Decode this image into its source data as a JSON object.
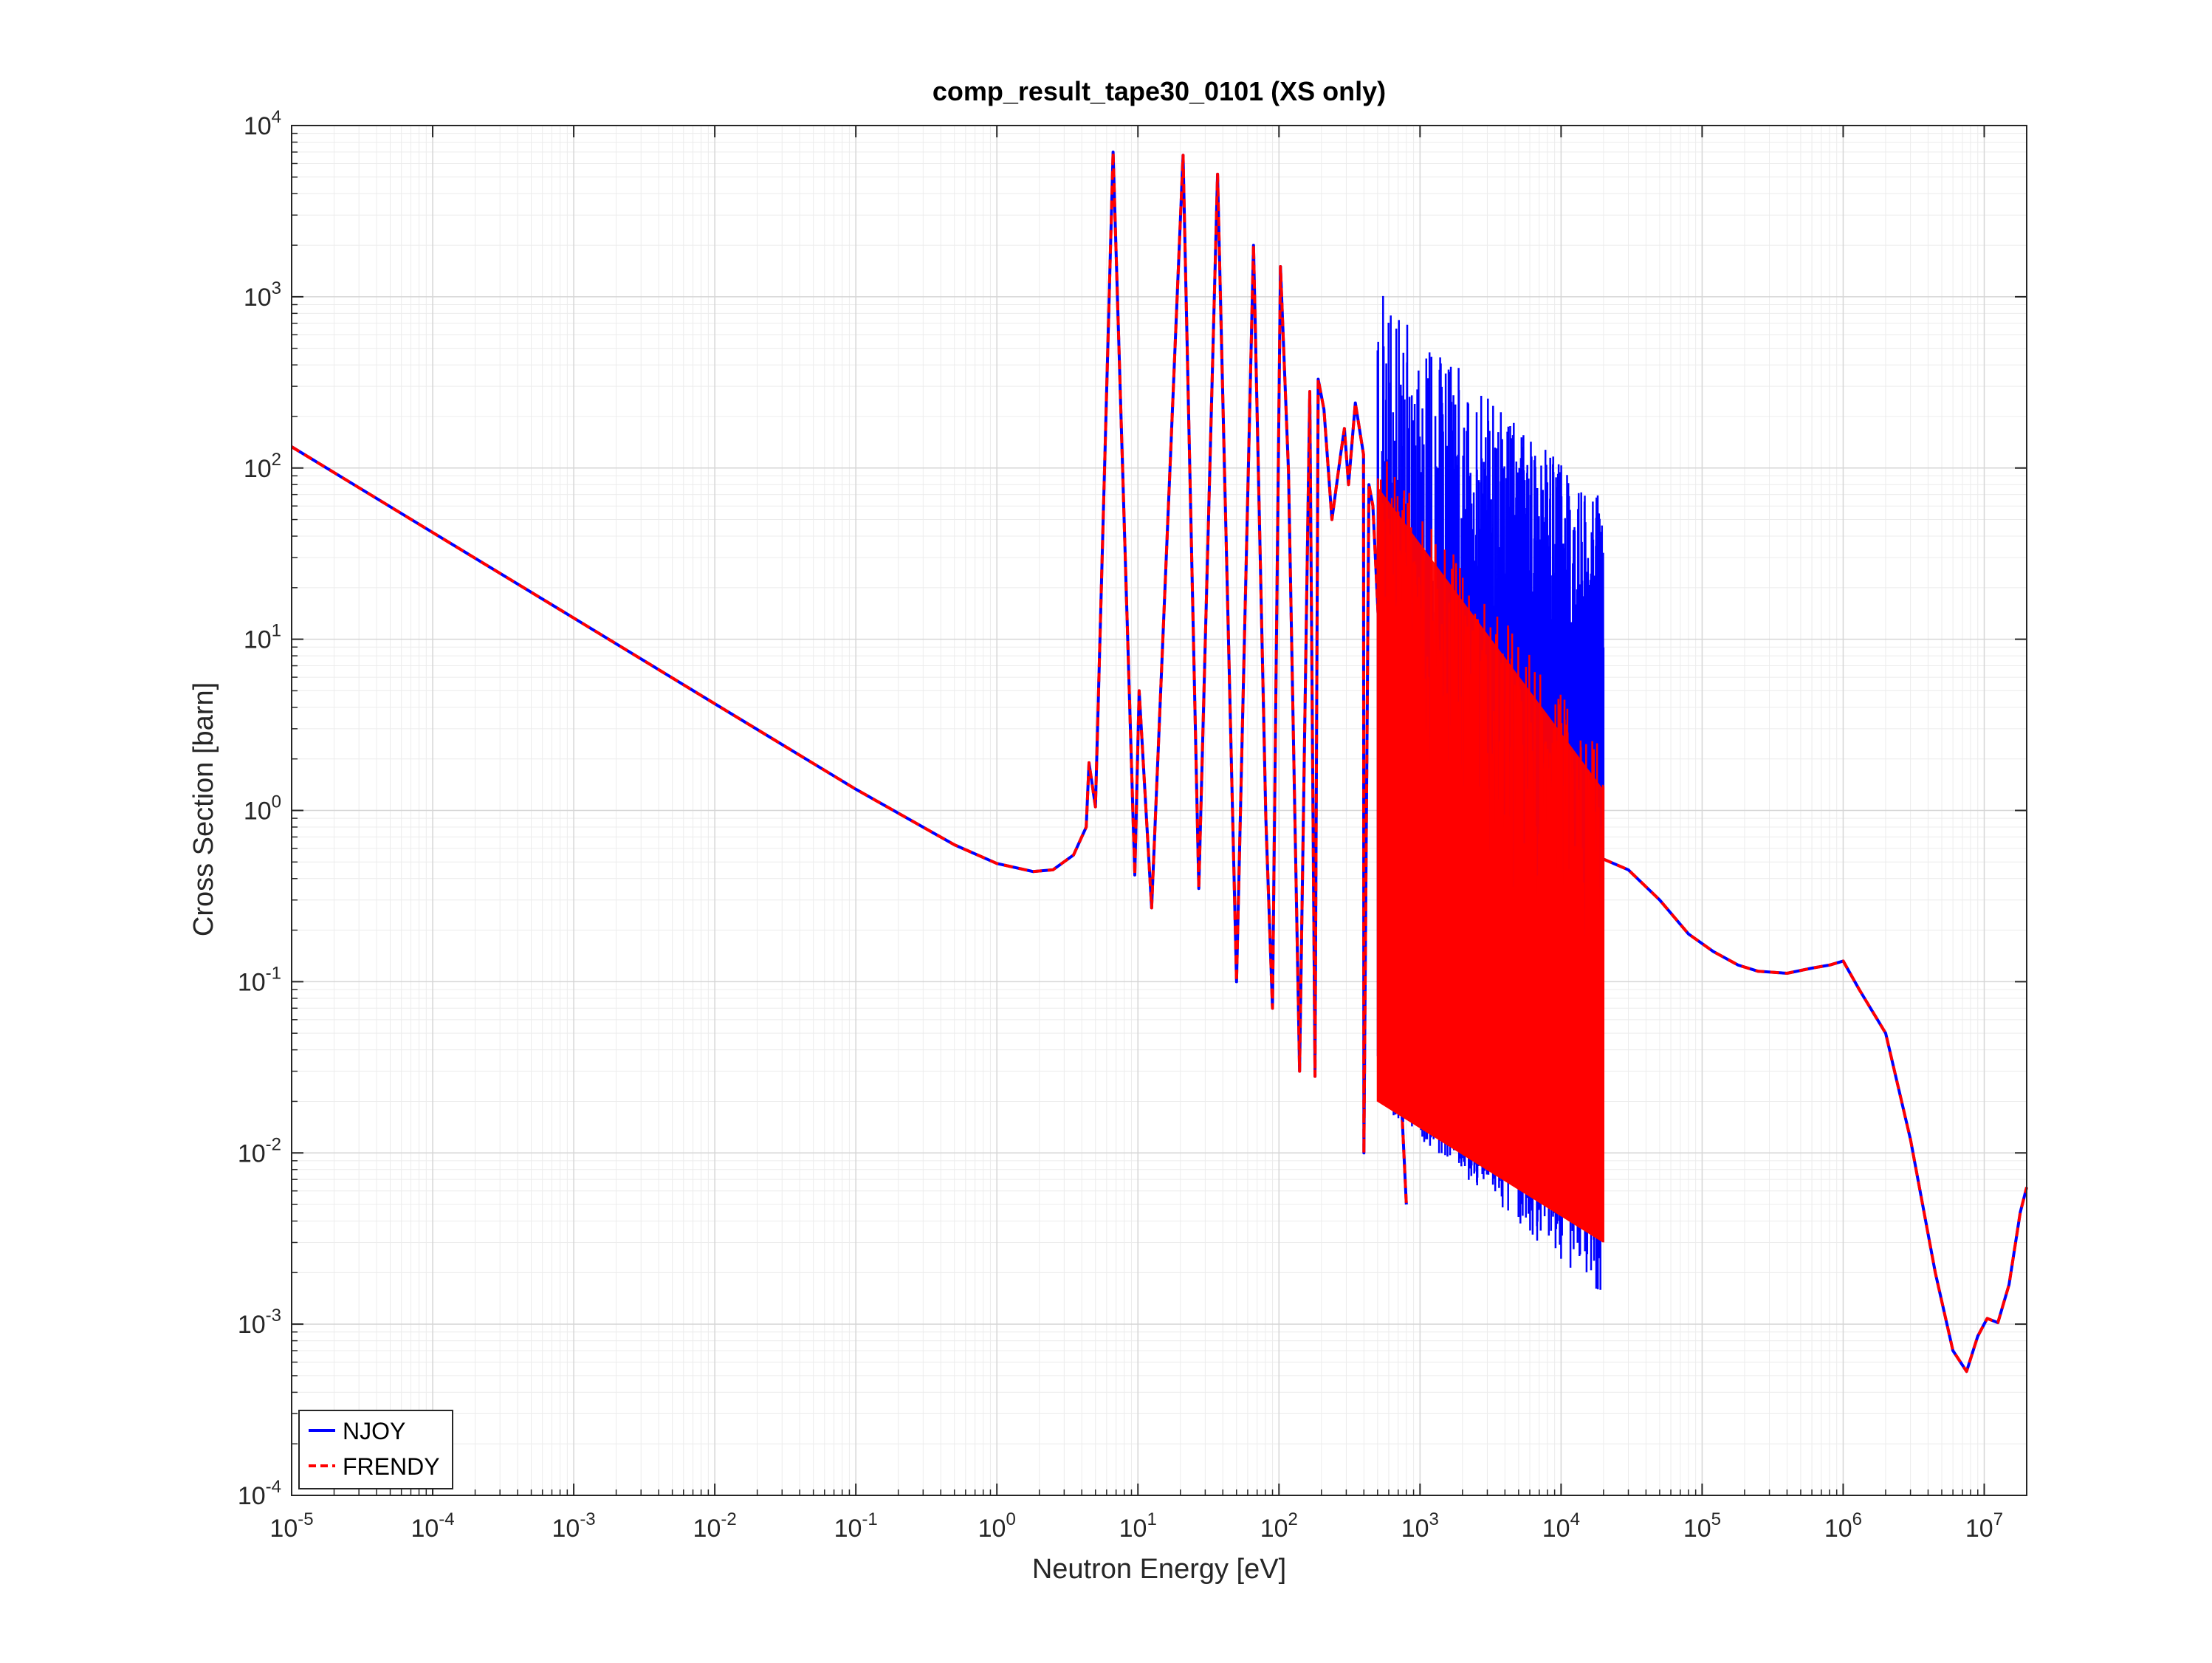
{
  "chart_data": {
    "type": "line",
    "title": "comp_result_tape30_0101 (XS only)",
    "xlabel": "Neutron Energy [eV]",
    "ylabel": "Cross Section [barn]",
    "xscale": "log",
    "yscale": "log",
    "xlim": [
      1e-05,
      20000000.0
    ],
    "ylim": [
      0.0001,
      10000.0
    ],
    "grid": true,
    "minor_grid": true,
    "legend_position": "bottom-left",
    "x_ticks": [
      {
        "value": 1e-05,
        "base": "10",
        "exp": "-5"
      },
      {
        "value": 0.0001,
        "base": "10",
        "exp": "-4"
      },
      {
        "value": 0.001,
        "base": "10",
        "exp": "-3"
      },
      {
        "value": 0.01,
        "base": "10",
        "exp": "-2"
      },
      {
        "value": 0.1,
        "base": "10",
        "exp": "-1"
      },
      {
        "value": 1.0,
        "base": "10",
        "exp": "0"
      },
      {
        "value": 10.0,
        "base": "10",
        "exp": "1"
      },
      {
        "value": 100.0,
        "base": "10",
        "exp": "2"
      },
      {
        "value": 1000.0,
        "base": "10",
        "exp": "3"
      },
      {
        "value": 10000.0,
        "base": "10",
        "exp": "4"
      },
      {
        "value": 100000.0,
        "base": "10",
        "exp": "5"
      },
      {
        "value": 1000000.0,
        "base": "10",
        "exp": "6"
      },
      {
        "value": 10000000.0,
        "base": "10",
        "exp": "7"
      }
    ],
    "y_ticks": [
      {
        "value": 0.0001,
        "base": "10",
        "exp": "-4"
      },
      {
        "value": 0.001,
        "base": "10",
        "exp": "-3"
      },
      {
        "value": 0.01,
        "base": "10",
        "exp": "-2"
      },
      {
        "value": 0.1,
        "base": "10",
        "exp": "-1"
      },
      {
        "value": 1.0,
        "base": "10",
        "exp": "0"
      },
      {
        "value": 10.0,
        "base": "10",
        "exp": "1"
      },
      {
        "value": 100.0,
        "base": "10",
        "exp": "2"
      },
      {
        "value": 1000.0,
        "base": "10",
        "exp": "3"
      },
      {
        "value": 10000.0,
        "base": "10",
        "exp": "4"
      }
    ],
    "series": [
      {
        "name": "NJOY",
        "color": "#0000ff",
        "style": "solid",
        "smooth_region": [
          [
            1e-05,
            133
          ],
          [
            0.0001,
            42
          ],
          [
            0.001,
            13.3
          ],
          [
            0.01,
            4.2
          ],
          [
            0.1,
            1.33
          ],
          [
            0.5,
            0.63
          ],
          [
            1.0,
            0.49
          ],
          [
            1.8,
            0.44
          ],
          [
            2.5,
            0.45
          ],
          [
            3.5,
            0.55
          ],
          [
            4.3,
            0.8
          ]
        ],
        "resolved_resonances": [
          {
            "e": 4.5,
            "peak": 1.9
          },
          {
            "e": 6.67,
            "peak": 7000
          },
          {
            "e": 10.2,
            "peak": 5.0
          },
          {
            "e": 20.9,
            "peak": 6700
          },
          {
            "e": 36.7,
            "peak": 5200
          },
          {
            "e": 66.0,
            "peak": 2000
          },
          {
            "e": 80.7,
            "peak": 0.9
          },
          {
            "e": 102.5,
            "peak": 1500
          },
          {
            "e": 116.9,
            "peak": 95
          },
          {
            "e": 165.3,
            "peak": 280
          },
          {
            "e": 189.7,
            "peak": 330
          },
          {
            "e": 208.5,
            "peak": 220
          },
          {
            "e": 237.4,
            "peak": 50
          },
          {
            "e": 273.7,
            "peak": 120
          },
          {
            "e": 291.0,
            "peak": 170
          },
          {
            "e": 311.4,
            "peak": 80
          },
          {
            "e": 347.8,
            "peak": 240
          },
          {
            "e": 397.6,
            "peak": 120
          },
          {
            "e": 433.9,
            "peak": 80
          },
          {
            "e": 463.6,
            "peak": 60
          }
        ],
        "valleys": [
          [
            5.0,
            1.05
          ],
          [
            9.5,
            0.42
          ],
          [
            12.5,
            0.27
          ],
          [
            27.0,
            0.35
          ],
          [
            50.0,
            0.1
          ],
          [
            90.0,
            0.07
          ],
          [
            140.0,
            0.03
          ],
          [
            180.0,
            0.028
          ],
          [
            400.0,
            0.01
          ],
          [
            800.0,
            0.005
          ]
        ],
        "dense_band": {
          "e_min": 500,
          "e_max": 20000,
          "upper_start": 1100,
          "upper_end": 65,
          "lower_start": 0.02,
          "lower_end": 0.0014,
          "floor_start": 0.06,
          "floor_end": 2.2
        },
        "fast_region": [
          [
            20000,
            0.52
          ],
          [
            30000,
            0.45
          ],
          [
            50000,
            0.3
          ],
          [
            80000,
            0.19
          ],
          [
            120000,
            0.15
          ],
          [
            180000,
            0.125
          ],
          [
            250000,
            0.115
          ],
          [
            400000,
            0.112
          ],
          [
            600000,
            0.12
          ],
          [
            800000,
            0.125
          ],
          [
            1000000,
            0.132
          ],
          [
            1300000,
            0.09
          ],
          [
            2000000,
            0.05
          ],
          [
            3000000,
            0.012
          ],
          [
            4500000,
            0.002
          ],
          [
            6000000,
            0.0007
          ],
          [
            7500000,
            0.00053
          ],
          [
            9000000,
            0.00085
          ],
          [
            10500000,
            0.00108
          ],
          [
            12500000,
            0.00102
          ],
          [
            15000000,
            0.0017
          ],
          [
            18000000,
            0.0045
          ],
          [
            20000000,
            0.0063
          ]
        ]
      },
      {
        "name": "FRENDY",
        "color": "#ff0000",
        "style": "dashed",
        "dense_band": {
          "e_min": 500,
          "e_max": 20000,
          "upper_start": 130,
          "upper_end": 2.2,
          "lower_start": 0.02,
          "lower_end": 0.003
        }
      }
    ]
  }
}
